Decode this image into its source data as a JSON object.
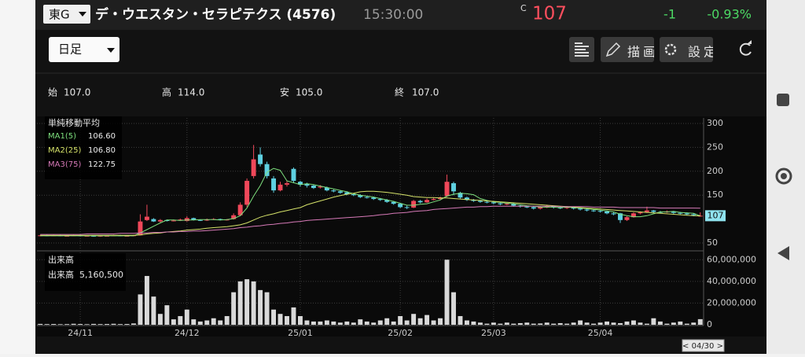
{
  "header": {
    "exchange": "東G",
    "name": "デ・ウエスタン・セラピテクス (4576)",
    "time": "15:30:00",
    "price_flag": "C",
    "price": "107",
    "change": "-1",
    "change_pct": "-0.93%"
  },
  "toolbar": {
    "period": "日足",
    "draw": "描画",
    "settings": "設定"
  },
  "ohlc": {
    "open_label": "始",
    "open": "107.0",
    "high_label": "高",
    "high": "114.0",
    "low_label": "安",
    "low": "105.0",
    "close_label": "終",
    "close": "107.0"
  },
  "date_badge": "< 04/30 >",
  "chart_data": [
    {
      "type": "candlestick",
      "legend_title": "単純移動平均",
      "up_color": "#f0485a",
      "down_color": "#5ed0e0",
      "grid": true,
      "ylim": [
        38.5,
        311.5
      ],
      "yticks": [
        50,
        150,
        200,
        250,
        300
      ],
      "open": [
        65,
        66,
        65,
        66,
        65,
        65,
        66,
        65,
        65,
        64,
        65,
        65,
        66,
        65,
        65,
        66,
        98,
        100,
        95,
        98,
        96,
        97,
        96,
        102,
        98,
        97,
        99,
        100,
        98,
        100,
        108,
        130,
        190,
        235,
        215,
        185,
        160,
        172,
        205,
        178,
        173,
        170,
        166,
        166,
        160,
        158,
        156,
        152,
        150,
        146,
        145,
        142,
        140,
        136,
        132,
        125,
        124,
        138,
        135,
        140,
        142,
        148,
        175,
        155,
        145,
        140,
        138,
        136,
        135,
        133,
        131,
        132,
        128,
        126,
        125,
        122,
        124,
        127,
        124,
        123,
        125,
        122,
        120,
        118,
        117,
        116,
        112,
        112,
        98,
        104,
        112,
        115,
        118,
        115,
        114,
        116,
        113,
        112,
        110,
        107
      ],
      "high": [
        67,
        67,
        67,
        67,
        66,
        67,
        67,
        66,
        66,
        66,
        66,
        67,
        67,
        66,
        67,
        110,
        130,
        102,
        100,
        99,
        99,
        101,
        106,
        103,
        99,
        101,
        102,
        101,
        100,
        112,
        135,
        185,
        255,
        250,
        220,
        190,
        178,
        180,
        208,
        180,
        176,
        172,
        171,
        168,
        162,
        160,
        158,
        154,
        152,
        148,
        147,
        144,
        142,
        138,
        134,
        128,
        140,
        140,
        143,
        145,
        147,
        193,
        178,
        157,
        147,
        142,
        140,
        138,
        137,
        135,
        134,
        134,
        130,
        128,
        127,
        127,
        130,
        128,
        126,
        127,
        126,
        124,
        122,
        120,
        119,
        118,
        114,
        113,
        106,
        114,
        116,
        126,
        119,
        117,
        118,
        117,
        115,
        114,
        112,
        114
      ],
      "low": [
        64,
        64,
        65,
        64,
        64,
        65,
        64,
        64,
        63,
        63,
        64,
        65,
        64,
        64,
        65,
        66,
        96,
        94,
        93,
        95,
        95,
        96,
        95,
        97,
        96,
        96,
        98,
        97,
        97,
        99,
        106,
        125,
        185,
        210,
        185,
        155,
        158,
        168,
        175,
        168,
        166,
        163,
        164,
        158,
        156,
        153,
        150,
        148,
        144,
        143,
        140,
        138,
        134,
        130,
        123,
        121,
        123,
        133,
        134,
        139,
        140,
        146,
        150,
        143,
        138,
        136,
        134,
        133,
        131,
        129,
        129,
        126,
        124,
        123,
        120,
        120,
        123,
        122,
        121,
        121,
        120,
        118,
        116,
        115,
        114,
        110,
        108,
        92,
        96,
        103,
        110,
        113,
        113,
        112,
        113,
        111,
        110,
        108,
        106,
        105
      ],
      "close": [
        66,
        65,
        66,
        65,
        65,
        66,
        65,
        65,
        64,
        65,
        65,
        66,
        65,
        65,
        66,
        95,
        105,
        95,
        98,
        96,
        97,
        99,
        102,
        98,
        97,
        99,
        100,
        98,
        99,
        108,
        130,
        180,
        225,
        215,
        190,
        160,
        172,
        175,
        180,
        172,
        170,
        165,
        168,
        160,
        158,
        155,
        152,
        150,
        146,
        145,
        142,
        140,
        136,
        132,
        125,
        124,
        138,
        135,
        140,
        142,
        145,
        178,
        158,
        145,
        140,
        138,
        136,
        135,
        133,
        131,
        132,
        128,
        126,
        125,
        122,
        125,
        127,
        124,
        123,
        125,
        122,
        120,
        118,
        117,
        116,
        112,
        110,
        98,
        104,
        112,
        114,
        118,
        115,
        114,
        116,
        113,
        112,
        110,
        108,
        107
      ],
      "series": [
        {
          "name": "MA1(5)",
          "color": "#7ee07e",
          "legend_value": "106.60",
          "values": [
            65,
            65,
            65,
            65,
            65,
            65,
            65,
            65,
            65,
            65,
            65,
            65,
            65,
            65,
            65,
            71,
            78,
            85,
            92,
            98,
            98,
            97,
            98,
            98,
            99,
            99,
            99,
            98,
            99,
            101,
            107,
            123,
            148,
            170,
            198,
            206,
            202,
            180,
            176,
            172,
            174,
            172,
            169,
            166,
            163,
            160,
            157,
            153,
            150,
            148,
            146,
            143,
            140,
            137,
            133,
            129,
            129,
            131,
            132,
            136,
            140,
            148,
            152,
            154,
            153,
            151,
            143,
            139,
            136,
            135,
            133,
            132,
            130,
            128,
            127,
            125,
            125,
            125,
            124,
            125,
            124,
            123,
            122,
            120,
            119,
            117,
            115,
            110,
            107,
            105,
            105,
            107,
            111,
            115,
            115,
            116,
            114,
            113,
            112,
            106.6
          ]
        },
        {
          "name": "MA2(25)",
          "color": "#d6e36a",
          "legend_value": "106.80",
          "values": [
            66,
            66,
            66,
            66,
            66,
            66,
            66,
            66,
            66,
            66,
            66,
            66,
            66,
            66,
            66,
            67,
            69,
            70,
            71,
            73,
            74,
            75,
            77,
            78,
            79,
            81,
            82,
            83,
            84,
            86,
            88,
            92,
            98,
            104,
            108,
            111,
            115,
            118,
            121,
            124,
            130,
            134,
            138,
            142,
            146,
            149,
            152,
            154,
            157,
            158,
            158,
            157,
            156,
            154,
            152,
            150,
            147,
            146,
            145,
            145,
            144,
            144,
            143,
            142,
            141,
            140,
            139,
            138,
            137,
            136,
            135,
            134,
            133,
            132,
            131,
            130,
            129,
            128,
            127,
            126,
            125,
            124,
            123,
            122,
            121,
            120,
            119,
            118,
            117,
            116,
            115,
            114,
            113,
            112,
            111,
            110,
            109,
            108,
            107,
            106.8
          ]
        },
        {
          "name": "MA3(75)",
          "color": "#d77ab8",
          "legend_value": "122.75",
          "values": [
            68,
            68,
            68,
            68,
            68,
            68,
            68,
            69,
            69,
            69,
            69,
            69,
            70,
            70,
            70,
            71,
            71,
            72,
            72,
            73,
            73,
            74,
            74,
            75,
            75,
            76,
            77,
            78,
            79,
            80,
            82,
            83,
            85,
            86,
            88,
            89,
            91,
            92,
            94,
            95,
            97,
            98,
            99,
            100,
            101,
            102,
            103,
            104,
            105,
            106,
            107,
            109,
            110,
            112,
            113,
            114,
            116,
            117,
            118,
            120,
            121,
            122,
            123,
            124,
            125,
            125,
            126,
            126,
            127,
            127,
            127,
            127,
            127,
            127,
            127,
            127,
            127,
            127,
            126,
            126,
            126,
            126,
            126,
            125,
            125,
            125,
            125,
            124,
            124,
            124,
            124,
            124,
            124,
            123,
            123,
            123,
            123,
            123,
            123,
            122.75
          ]
        }
      ]
    },
    {
      "type": "bar",
      "title": "出来高",
      "legend_label": "出来高",
      "legend_value": "5,160,500",
      "color": "#d9d9d9",
      "grid": true,
      "ylim": [
        0,
        66000000
      ],
      "yticks": [
        0,
        {
          "value": 20000000,
          "label": "20,000,000"
        },
        {
          "value": 40000000,
          "label": "40,000,000"
        },
        {
          "value": 60000000,
          "label": "60,000,000"
        }
      ],
      "categories": [
        null,
        null,
        null,
        null,
        null,
        null,
        "24/11",
        null,
        null,
        null,
        null,
        null,
        null,
        null,
        null,
        null,
        null,
        null,
        null,
        null,
        null,
        null,
        "24/12",
        null,
        null,
        null,
        null,
        null,
        null,
        null,
        null,
        null,
        null,
        null,
        null,
        null,
        null,
        null,
        null,
        "25/01",
        null,
        null,
        null,
        null,
        null,
        null,
        null,
        null,
        null,
        null,
        null,
        null,
        null,
        null,
        "25/02",
        null,
        null,
        null,
        null,
        null,
        null,
        null,
        null,
        null,
        null,
        null,
        null,
        null,
        "25/03",
        null,
        null,
        null,
        null,
        null,
        null,
        null,
        null,
        null,
        null,
        null,
        null,
        null,
        null,
        null,
        "25/04",
        null,
        null,
        null,
        null,
        null,
        null,
        null,
        null,
        null,
        null,
        null,
        null,
        null,
        null,
        null
      ],
      "values": [
        800000,
        600000,
        700000,
        500000,
        600000,
        900000,
        700000,
        500000,
        800000,
        600000,
        700000,
        900000,
        600000,
        700000,
        1200000,
        28000000,
        45000000,
        26000000,
        10000000,
        18000000,
        5000000,
        8000000,
        14000000,
        5000000,
        3000000,
        4000000,
        6000000,
        4000000,
        8000000,
        30000000,
        40000000,
        42000000,
        40000000,
        32000000,
        30000000,
        14000000,
        10000000,
        8000000,
        16000000,
        8000000,
        4000000,
        3000000,
        3000000,
        4000000,
        3000000,
        2000000,
        3000000,
        2000000,
        5000000,
        3000000,
        2000000,
        4000000,
        6000000,
        3000000,
        8000000,
        4000000,
        10000000,
        6000000,
        9000000,
        4000000,
        6000000,
        60000000,
        30000000,
        8000000,
        4000000,
        3000000,
        2000000,
        1000000,
        2000000,
        1000000,
        2000000,
        1000000,
        1500000,
        2000000,
        1000000,
        1200000,
        2000000,
        1000000,
        1500000,
        1000000,
        2000000,
        4000000,
        2000000,
        1000000,
        2000000,
        3000000,
        2000000,
        1500000,
        3000000,
        4000000,
        2000000,
        1000000,
        6000000,
        3000000,
        1000000,
        2000000,
        3000000,
        1000000,
        2000000,
        5160500
      ]
    }
  ]
}
